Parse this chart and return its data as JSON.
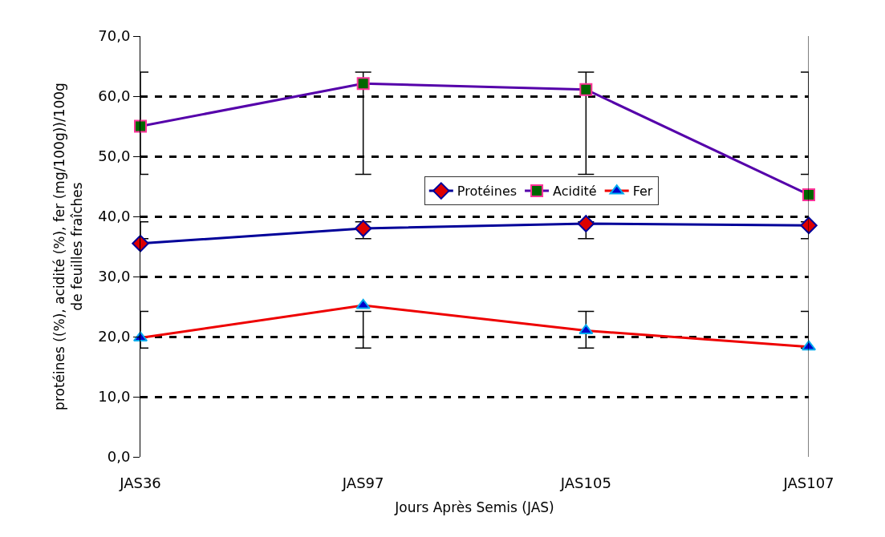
{
  "chart_data": {
    "type": "line",
    "categories": [
      "JAS36",
      "JAS97",
      "JAS105",
      "JAS107"
    ],
    "xlabel": "Jours Après Semis (JAS)",
    "ylabel": "protéines ((%), acidité (%), fer (mg/100g))/100g\nde feuilles fraîches",
    "ylim": [
      0,
      70
    ],
    "yticks": [
      {
        "value": 0,
        "label": "0,0"
      },
      {
        "value": 10,
        "label": "10,0"
      },
      {
        "value": 20,
        "label": "20,0"
      },
      {
        "value": 30,
        "label": "30,0"
      },
      {
        "value": 40,
        "label": "40,0"
      },
      {
        "value": 50,
        "label": "50,0"
      },
      {
        "value": 60,
        "label": "60,0"
      },
      {
        "value": 70,
        "label": "70,0"
      }
    ],
    "grid": "y",
    "line_style": "solid",
    "legend": "center",
    "series": [
      {
        "name": "Protéines",
        "color": "#000099",
        "marker": "diamond",
        "values": [
          35.5,
          38.0,
          38.8,
          38.5
        ],
        "errors": [
          [
            36.3,
            39.1
          ],
          [
            36.3,
            39.1
          ],
          [
            36.3,
            39.1
          ],
          [
            36.3,
            39.1
          ]
        ]
      },
      {
        "name": "Acidité",
        "color": "#5500aa",
        "marker": "square",
        "values": [
          55.0,
          62.1,
          61.1,
          43.6
        ],
        "errors": [
          [
            47,
            64
          ],
          [
            47,
            64
          ],
          [
            47,
            64
          ],
          [
            47,
            64
          ]
        ]
      },
      {
        "name": "Fer",
        "color": "#ee0000",
        "marker": "triangle",
        "values": [
          19.8,
          25.2,
          21.0,
          18.3
        ],
        "errors": [
          [
            18.1,
            24.2
          ],
          [
            18.1,
            24.2
          ],
          [
            18.1,
            24.2
          ],
          [
            18.1,
            24.2
          ]
        ]
      }
    ]
  }
}
